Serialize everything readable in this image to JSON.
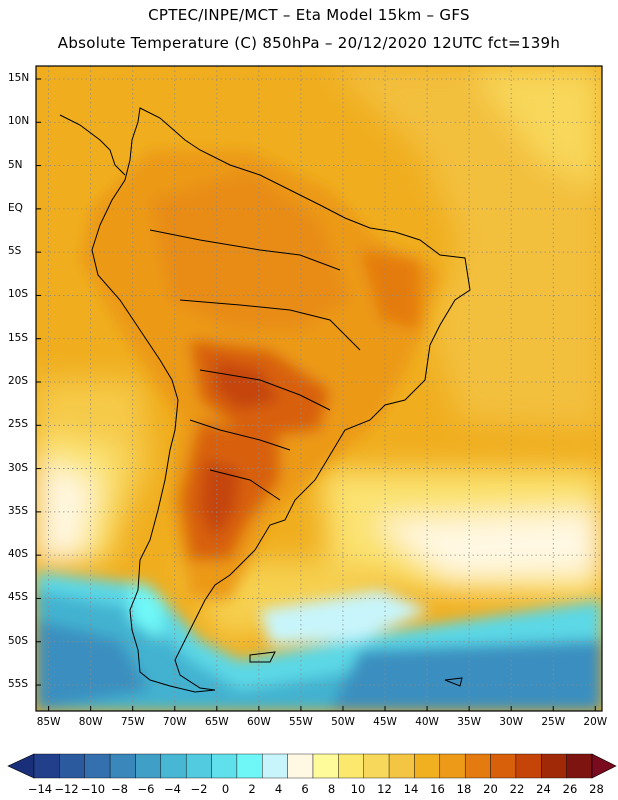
{
  "title": {
    "line1": "CPTEC/INPE/MCT –   Eta Model 15km – GFS",
    "line2": "Absolute Temperature (C) 850hPa – 20/12/2020 12UTC fct=139h"
  },
  "axes": {
    "lat_labels": [
      "15N",
      "10N",
      "5N",
      "EQ",
      "5S",
      "10S",
      "15S",
      "20S",
      "25S",
      "30S",
      "35S",
      "40S",
      "45S",
      "50S",
      "55S"
    ],
    "lat_values": [
      15,
      10,
      5,
      0,
      -5,
      -10,
      -15,
      -20,
      -25,
      -30,
      -35,
      -40,
      -45,
      -50,
      -55
    ],
    "lon_labels": [
      "85W",
      "80W",
      "75W",
      "70W",
      "65W",
      "60W",
      "55W",
      "50W",
      "45W",
      "40W",
      "35W",
      "30W",
      "25W",
      "20W"
    ],
    "lon_values": [
      -85,
      -80,
      -75,
      -70,
      -65,
      -60,
      -55,
      -50,
      -45,
      -40,
      -35,
      -30,
      -25,
      -20
    ]
  },
  "colorbar": {
    "labels": [
      "-14",
      "-12",
      "-10",
      "-8",
      "-6",
      "-4",
      "-2",
      "0",
      "2",
      "4",
      "6",
      "8",
      "10",
      "12",
      "14",
      "16",
      "18",
      "20",
      "22",
      "24",
      "26",
      "28"
    ],
    "under_color": "#1a2f7a",
    "over_color": "#7a0a1e",
    "colors": [
      "#223f8c",
      "#2c5a9f",
      "#3470ae",
      "#3a87bb",
      "#3f9fc6",
      "#47b7d3",
      "#52cbe0",
      "#5fe0ea",
      "#6ff7f7",
      "#c8f5fb",
      "#fff9e3",
      "#fefb9a",
      "#fbe86c",
      "#f8d85a",
      "#f4c543",
      "#f0b020",
      "#ec9a18",
      "#e47b10",
      "#d8600b",
      "#c54508",
      "#a02a08",
      "#7d1410"
    ]
  }
}
